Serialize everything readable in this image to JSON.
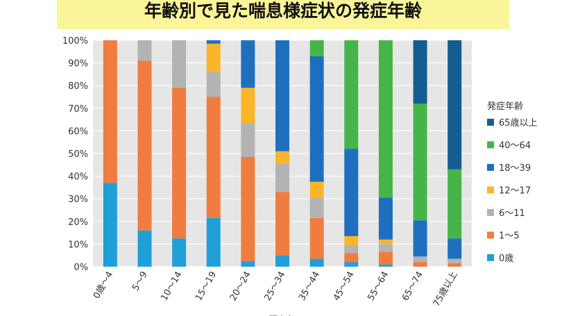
{
  "title": "年齢別で見た喘息様症状の発症年齢",
  "chart_data": {
    "type": "bar",
    "stacked": true,
    "categories": [
      "0歳〜4",
      "5〜9",
      "10〜14",
      "15〜19",
      "20〜24",
      "25〜34",
      "35〜44",
      "45〜54",
      "55〜64",
      "65〜74",
      "75歳以上"
    ],
    "xlabel": "現在年",
    "ylabel": "",
    "ylim": [
      0,
      100
    ],
    "yticks": [
      "0%",
      "10%",
      "20%",
      "30%",
      "40%",
      "50%",
      "60%",
      "70%",
      "80%",
      "90%",
      "100%"
    ],
    "grid": true,
    "legend_title": "発症年齢",
    "legend_position": "right",
    "series": [
      {
        "name": "0歳",
        "color": "#1fa0d8",
        "values": [
          37,
          16,
          12.5,
          21.5,
          2.5,
          5,
          3.5,
          2,
          1,
          0,
          0
        ]
      },
      {
        "name": "1〜5",
        "color": "#f07d3f",
        "values": [
          63,
          75,
          66.5,
          53.5,
          46,
          28,
          18,
          4,
          5.5,
          2,
          1.5
        ]
      },
      {
        "name": "6〜11",
        "color": "#b3b3b3",
        "values": [
          0,
          9,
          21,
          11,
          15,
          12.5,
          9,
          3.5,
          3.5,
          2.5,
          2
        ]
      },
      {
        "name": "12〜17",
        "color": "#fbb529",
        "values": [
          0,
          0,
          0,
          12.5,
          15.5,
          5.5,
          7,
          4,
          2,
          0,
          0
        ]
      },
      {
        "name": "18〜39",
        "color": "#1e70bf",
        "values": [
          0,
          0,
          0,
          1.5,
          21,
          49,
          55.5,
          38.5,
          18.5,
          16,
          9
        ]
      },
      {
        "name": "40〜64",
        "color": "#46b549",
        "values": [
          0,
          0,
          0,
          0,
          0,
          0,
          7,
          48,
          69.5,
          51.5,
          30.5
        ]
      },
      {
        "name": "65歳以上",
        "color": "#145d91",
        "values": [
          0,
          0,
          0,
          0,
          0,
          0,
          0,
          0,
          0,
          28,
          57
        ]
      }
    ]
  }
}
